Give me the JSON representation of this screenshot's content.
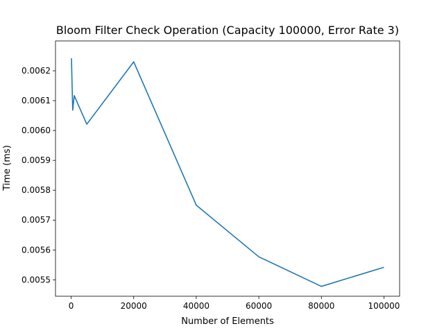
{
  "chart_data": {
    "type": "line",
    "title": "Bloom Filter Check Operation (Capacity 100000, Error Rate 3)",
    "xlabel": "Number of Elements",
    "ylabel": "Time (ms)",
    "xlim": [
      -5000,
      105000
    ],
    "ylim": [
      0.005445,
      0.0063
    ],
    "x_ticks": [
      0,
      20000,
      40000,
      60000,
      80000,
      100000
    ],
    "x_tick_labels": [
      "0",
      "20000",
      "40000",
      "60000",
      "80000",
      "100000"
    ],
    "y_ticks": [
      0.0055,
      0.0056,
      0.0057,
      0.0058,
      0.0059,
      0.006,
      0.0061,
      0.0062
    ],
    "y_tick_labels": [
      "0.0055",
      "0.0056",
      "0.0057",
      "0.0058",
      "0.0059",
      "0.0060",
      "0.0061",
      "0.0062"
    ],
    "grid": false,
    "series": [
      {
        "name": "check",
        "color": "#1f77b4",
        "x": [
          100,
          500,
          1000,
          5000,
          20000,
          40000,
          60000,
          80000,
          100000
        ],
        "y": [
          0.006242,
          0.006068,
          0.006117,
          0.006021,
          0.00623,
          0.00575,
          0.005577,
          0.005478,
          0.005542
        ]
      }
    ]
  }
}
